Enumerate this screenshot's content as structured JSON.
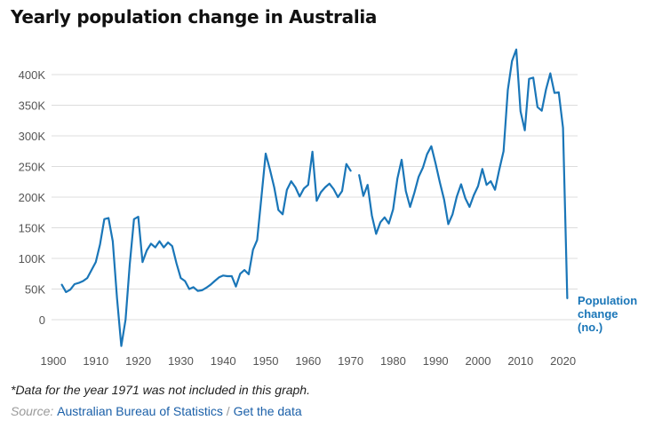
{
  "title": "Yearly population change in Australia",
  "note": "*Data for the year 1971  was not included in this graph.",
  "source": {
    "label": "Source:",
    "link1": "Australian Bureau of Statistics",
    "separator": "/",
    "link2": "Get the data"
  },
  "colors": {
    "line": "#1a76b8",
    "grid": "#dcdcdc",
    "axis_text": "#555555"
  },
  "chart_data": {
    "type": "line",
    "title": "Yearly population change in Australia",
    "xlabel": "",
    "ylabel": "",
    "xlim": [
      1900,
      2022
    ],
    "ylim": [
      -45000,
      440000
    ],
    "grid": true,
    "x_ticks": [
      1900,
      1910,
      1920,
      1930,
      1940,
      1950,
      1960,
      1970,
      1980,
      1990,
      2000,
      2010,
      2020
    ],
    "y_ticks": [
      {
        "value": 0,
        "label": "0"
      },
      {
        "value": 50000,
        "label": "50K"
      },
      {
        "value": 100000,
        "label": "100K"
      },
      {
        "value": 150000,
        "label": "150K"
      },
      {
        "value": 200000,
        "label": "200K"
      },
      {
        "value": 250000,
        "label": "250K"
      },
      {
        "value": 300000,
        "label": "300K"
      },
      {
        "value": 350000,
        "label": "350K"
      },
      {
        "value": 400000,
        "label": "400K"
      }
    ],
    "series": [
      {
        "name": "Population change (no.)",
        "segments": [
          [
            [
              1902,
              57000
            ],
            [
              1903,
              45000
            ],
            [
              1904,
              49000
            ],
            [
              1905,
              58000
            ],
            [
              1906,
              60000
            ],
            [
              1907,
              63000
            ],
            [
              1908,
              68000
            ],
            [
              1909,
              81000
            ],
            [
              1910,
              94000
            ],
            [
              1911,
              123000
            ],
            [
              1912,
              164000
            ],
            [
              1913,
              166000
            ],
            [
              1914,
              128000
            ],
            [
              1915,
              35000
            ],
            [
              1916,
              -43000
            ],
            [
              1917,
              0
            ],
            [
              1918,
              90000
            ],
            [
              1919,
              164000
            ],
            [
              1920,
              168000
            ],
            [
              1921,
              94000
            ],
            [
              1922,
              113000
            ],
            [
              1923,
              124000
            ],
            [
              1924,
              118000
            ],
            [
              1925,
              128000
            ],
            [
              1926,
              118000
            ],
            [
              1927,
              126000
            ],
            [
              1928,
              120000
            ],
            [
              1929,
              92000
            ],
            [
              1930,
              68000
            ],
            [
              1931,
              63000
            ],
            [
              1932,
              50000
            ],
            [
              1933,
              53000
            ],
            [
              1934,
              47000
            ],
            [
              1935,
              48000
            ],
            [
              1936,
              52000
            ],
            [
              1937,
              57000
            ],
            [
              1938,
              63000
            ],
            [
              1939,
              69000
            ],
            [
              1940,
              72000
            ],
            [
              1941,
              71000
            ],
            [
              1942,
              71000
            ],
            [
              1943,
              54000
            ],
            [
              1944,
              75000
            ],
            [
              1945,
              81000
            ],
            [
              1946,
              74000
            ],
            [
              1947,
              114000
            ],
            [
              1948,
              130000
            ],
            [
              1949,
              200000
            ],
            [
              1950,
              271000
            ],
            [
              1951,
              245000
            ],
            [
              1952,
              216000
            ],
            [
              1953,
              179000
            ],
            [
              1954,
              172000
            ],
            [
              1955,
              212000
            ],
            [
              1956,
              226000
            ],
            [
              1957,
              216000
            ],
            [
              1958,
              201000
            ],
            [
              1959,
              214000
            ],
            [
              1960,
              220000
            ],
            [
              1961,
              274000
            ],
            [
              1962,
              194000
            ],
            [
              1963,
              208000
            ],
            [
              1964,
              216000
            ],
            [
              1965,
              222000
            ],
            [
              1966,
              213000
            ],
            [
              1967,
              200000
            ],
            [
              1968,
              210000
            ],
            [
              1969,
              254000
            ],
            [
              1970,
              243000
            ]
          ],
          [
            [
              1972,
              236000
            ],
            [
              1973,
              202000
            ],
            [
              1974,
              220000
            ],
            [
              1975,
              170000
            ],
            [
              1976,
              140000
            ],
            [
              1977,
              159000
            ],
            [
              1978,
              167000
            ],
            [
              1979,
              157000
            ],
            [
              1980,
              180000
            ],
            [
              1981,
              230000
            ],
            [
              1982,
              261000
            ],
            [
              1983,
              210000
            ],
            [
              1984,
              184000
            ],
            [
              1985,
              207000
            ],
            [
              1986,
              233000
            ],
            [
              1987,
              248000
            ],
            [
              1988,
              270000
            ],
            [
              1989,
              283000
            ],
            [
              1990,
              255000
            ],
            [
              1991,
              224000
            ],
            [
              1992,
              196000
            ],
            [
              1993,
              156000
            ],
            [
              1994,
              172000
            ],
            [
              1995,
              201000
            ],
            [
              1996,
              221000
            ],
            [
              1997,
              198000
            ],
            [
              1998,
              184000
            ],
            [
              1999,
              203000
            ],
            [
              2000,
              218000
            ],
            [
              2001,
              246000
            ],
            [
              2002,
              220000
            ],
            [
              2003,
              226000
            ],
            [
              2004,
              212000
            ],
            [
              2005,
              245000
            ],
            [
              2006,
              275000
            ],
            [
              2007,
              375000
            ],
            [
              2008,
              422000
            ],
            [
              2009,
              441000
            ],
            [
              2010,
              340000
            ],
            [
              2011,
              309000
            ],
            [
              2012,
              393000
            ],
            [
              2013,
              395000
            ],
            [
              2014,
              347000
            ],
            [
              2015,
              341000
            ],
            [
              2016,
              376000
            ],
            [
              2017,
              402000
            ],
            [
              2018,
              370000
            ],
            [
              2019,
              371000
            ],
            [
              2020,
              313000
            ],
            [
              2021,
              35000
            ]
          ]
        ]
      }
    ],
    "end_label": [
      "Population",
      "change",
      "(no.)"
    ]
  }
}
